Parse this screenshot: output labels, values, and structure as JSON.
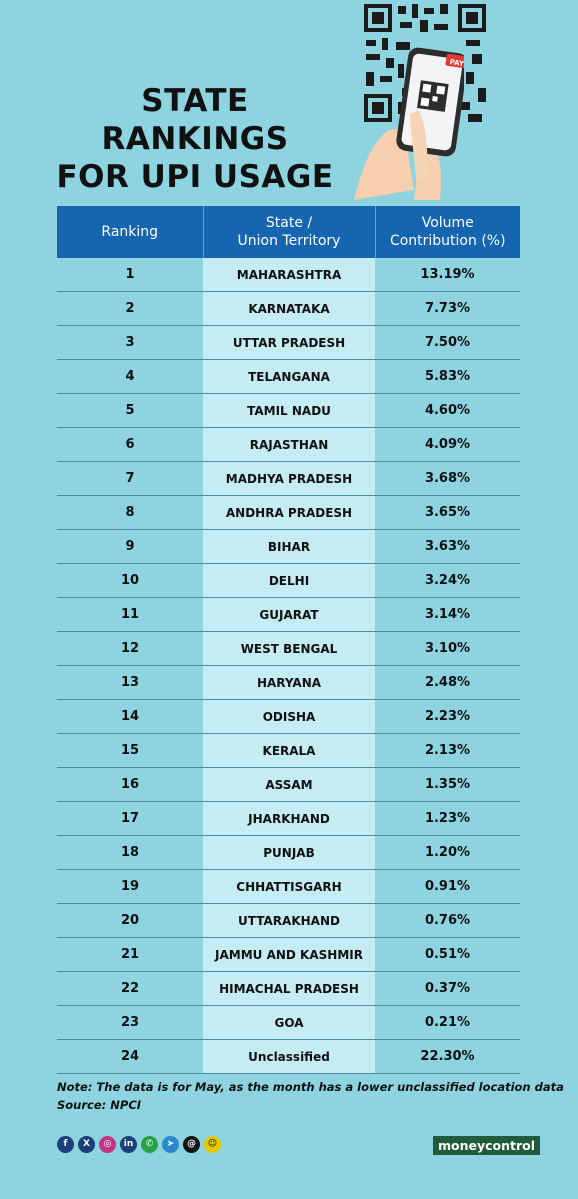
{
  "title": {
    "line1": "STATE",
    "line2": "RANKINGS",
    "line3": "FOR UPI USAGE"
  },
  "phone_badge": "PAY",
  "table": {
    "headers": {
      "ranking": "Ranking",
      "state_line1": "State /",
      "state_line2": "Union Territory",
      "volume_line1": "Volume",
      "volume_line2": "Contribution (%)"
    },
    "rows": [
      {
        "rank": "1",
        "state": "MAHARASHTRA",
        "volume": "13.19%"
      },
      {
        "rank": "2",
        "state": "KARNATAKA",
        "volume": "7.73%"
      },
      {
        "rank": "3",
        "state": "UTTAR PRADESH",
        "volume": "7.50%"
      },
      {
        "rank": "4",
        "state": "TELANGANA",
        "volume": "5.83%"
      },
      {
        "rank": "5",
        "state": "TAMIL NADU",
        "volume": "4.60%"
      },
      {
        "rank": "6",
        "state": "RAJASTHAN",
        "volume": "4.09%"
      },
      {
        "rank": "7",
        "state": "MADHYA PRADESH",
        "volume": "3.68%"
      },
      {
        "rank": "8",
        "state": "ANDHRA PRADESH",
        "volume": "3.65%"
      },
      {
        "rank": "9",
        "state": "BIHAR",
        "volume": "3.63%"
      },
      {
        "rank": "10",
        "state": "DELHI",
        "volume": "3.24%"
      },
      {
        "rank": "11",
        "state": "GUJARAT",
        "volume": "3.14%"
      },
      {
        "rank": "12",
        "state": "WEST BENGAL",
        "volume": "3.10%"
      },
      {
        "rank": "13",
        "state": "HARYANA",
        "volume": "2.48%"
      },
      {
        "rank": "14",
        "state": "ODISHA",
        "volume": "2.23%"
      },
      {
        "rank": "15",
        "state": "KERALA",
        "volume": "2.13%"
      },
      {
        "rank": "16",
        "state": "ASSAM",
        "volume": "1.35%"
      },
      {
        "rank": "17",
        "state": "JHARKHAND",
        "volume": "1.23%"
      },
      {
        "rank": "18",
        "state": "PUNJAB",
        "volume": "1.20%"
      },
      {
        "rank": "19",
        "state": "CHHATTISGARH",
        "volume": "0.91%"
      },
      {
        "rank": "20",
        "state": "UTTARAKHAND",
        "volume": "0.76%"
      },
      {
        "rank": "21",
        "state": "JAMMU AND KASHMIR",
        "volume": "0.51%"
      },
      {
        "rank": "22",
        "state": "HIMACHAL PRADESH",
        "volume": "0.37%"
      },
      {
        "rank": "23",
        "state": "GOA",
        "volume": "0.21%"
      },
      {
        "rank": "24",
        "state": "Unclassified",
        "volume": "22.30%"
      }
    ]
  },
  "note": "Note: The data is for May, as the month has a lower unclassified location data",
  "source": "Source: NPCI",
  "social_icons": [
    "facebook-icon",
    "x-icon",
    "instagram-icon",
    "linkedin-icon",
    "whatsapp-icon",
    "telegram-icon",
    "threads-icon",
    "snapchat-icon"
  ],
  "brand": "moneycontrol",
  "colors": {
    "background": "#8dd3e0",
    "header": "#1565b0",
    "state_column": "#c4ecf2",
    "brand": "#1f5c3a"
  }
}
